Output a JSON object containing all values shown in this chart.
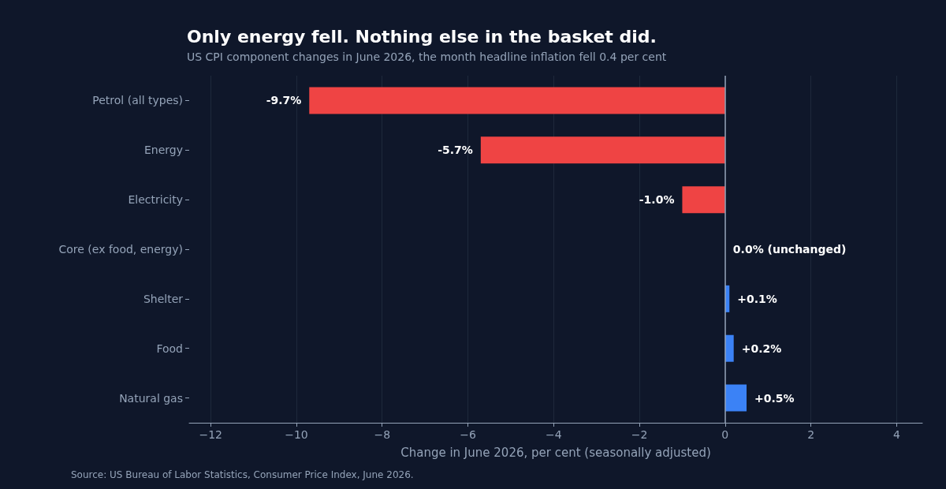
{
  "chart_data": {
    "type": "bar",
    "orientation": "horizontal",
    "title": "Only energy fell. Nothing else in the basket did.",
    "subtitle": "US CPI component changes in June 2026, the month headline inflation fell 0.4 per cent",
    "xlabel": "Change in June 2026, per cent (seasonally adjusted)",
    "categories": [
      "Petrol (all types)",
      "Energy",
      "Electricity",
      "Core (ex food, energy)",
      "Shelter",
      "Food",
      "Natural gas"
    ],
    "values": [
      -9.7,
      -5.7,
      -1.0,
      0.0,
      0.1,
      0.2,
      0.5
    ],
    "colors": [
      "#ef4444",
      "#ef4444",
      "#ef4444",
      "#3b82f6",
      "#3b82f6",
      "#3b82f6",
      "#3b82f6"
    ],
    "value_labels": [
      "-9.7%",
      "-5.7%",
      "-1.0%",
      "0.0% (unchanged)",
      "+0.1%",
      "+0.2%",
      "+0.5%"
    ],
    "xlim": [
      -12.5,
      4.6
    ],
    "xticks": [
      -12,
      -10,
      -8,
      -6,
      -4,
      -2,
      0,
      2,
      4
    ],
    "grid": "x",
    "ref_lines": [
      {
        "axis": "x",
        "value": 0,
        "color": "#94a3b8"
      }
    ],
    "annotations": [
      "Source: US Bureau of Labor Statistics, Consumer Price Index, June 2026."
    ]
  }
}
